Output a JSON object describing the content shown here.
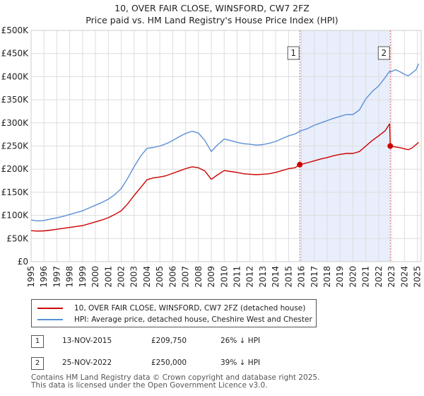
{
  "title": {
    "line1": "10, OVER FAIR CLOSE, WINSFORD, CW7 2FZ",
    "line2": "Price paid vs. HM Land Registry's House Price Index (HPI)"
  },
  "colors": {
    "property": "#cc0000",
    "hpi": "#5b8fd6",
    "shade": "#e8eefb",
    "grid": "#dddddd",
    "marker_line": "#e06666"
  },
  "chart_data": {
    "type": "line",
    "title": "10, OVER FAIR CLOSE, WINSFORD, CW7 2FZ — Price paid vs. HM Land Registry's House Price Index (HPI)",
    "xlabel": "",
    "ylabel": "",
    "xlim": [
      1995,
      2025.3
    ],
    "ylim": [
      0,
      500000
    ],
    "y_ticks": [
      {
        "value": 0,
        "label": "£0"
      },
      {
        "value": 50000,
        "label": "£50K"
      },
      {
        "value": 100000,
        "label": "£100K"
      },
      {
        "value": 150000,
        "label": "£150K"
      },
      {
        "value": 200000,
        "label": "£200K"
      },
      {
        "value": 250000,
        "label": "£250K"
      },
      {
        "value": 300000,
        "label": "£300K"
      },
      {
        "value": 350000,
        "label": "£350K"
      },
      {
        "value": 400000,
        "label": "£400K"
      },
      {
        "value": 450000,
        "label": "£450K"
      },
      {
        "value": 500000,
        "label": "£500K"
      }
    ],
    "x_ticks": [
      "1995",
      "1996",
      "1997",
      "1998",
      "1999",
      "2000",
      "2001",
      "2002",
      "2003",
      "2004",
      "2005",
      "2006",
      "2007",
      "2008",
      "2009",
      "2010",
      "2011",
      "2012",
      "2013",
      "2014",
      "2015",
      "2016",
      "2017",
      "2018",
      "2019",
      "2020",
      "2021",
      "2022",
      "2023",
      "2024",
      "2025"
    ],
    "shaded_range": [
      2015.87,
      2022.9
    ],
    "series": [
      {
        "name": "10, OVER FAIR CLOSE, WINSFORD, CW7 2FZ (detached house)",
        "color": "#cc0000",
        "points": [
          [
            1995.0,
            67000
          ],
          [
            1995.5,
            66000
          ],
          [
            1996.0,
            66500
          ],
          [
            1996.5,
            68000
          ],
          [
            1997.0,
            70000
          ],
          [
            1997.5,
            72000
          ],
          [
            1998.0,
            74000
          ],
          [
            1998.5,
            76000
          ],
          [
            1999.0,
            78000
          ],
          [
            1999.5,
            82000
          ],
          [
            2000.0,
            86000
          ],
          [
            2000.5,
            90000
          ],
          [
            2001.0,
            95000
          ],
          [
            2001.5,
            102000
          ],
          [
            2002.0,
            110000
          ],
          [
            2002.5,
            125000
          ],
          [
            2003.0,
            143000
          ],
          [
            2003.5,
            160000
          ],
          [
            2004.0,
            177000
          ],
          [
            2004.5,
            181000
          ],
          [
            2005.0,
            183000
          ],
          [
            2005.5,
            186000
          ],
          [
            2006.0,
            191000
          ],
          [
            2006.5,
            196000
          ],
          [
            2007.0,
            201000
          ],
          [
            2007.5,
            205000
          ],
          [
            2008.0,
            203000
          ],
          [
            2008.5,
            196000
          ],
          [
            2009.0,
            178000
          ],
          [
            2009.5,
            188000
          ],
          [
            2010.0,
            197000
          ],
          [
            2010.5,
            195000
          ],
          [
            2011.0,
            193000
          ],
          [
            2011.5,
            190000
          ],
          [
            2012.0,
            189000
          ],
          [
            2012.5,
            188000
          ],
          [
            2013.0,
            189000
          ],
          [
            2013.5,
            190000
          ],
          [
            2014.0,
            193000
          ],
          [
            2014.5,
            197000
          ],
          [
            2015.0,
            201000
          ],
          [
            2015.5,
            203000
          ],
          [
            2015.87,
            209750
          ],
          [
            2016.5,
            214000
          ],
          [
            2017.0,
            218000
          ],
          [
            2017.5,
            222000
          ],
          [
            2018.0,
            225000
          ],
          [
            2018.5,
            229000
          ],
          [
            2019.0,
            232000
          ],
          [
            2019.5,
            234000
          ],
          [
            2020.0,
            234000
          ],
          [
            2020.5,
            238000
          ],
          [
            2021.0,
            250000
          ],
          [
            2021.5,
            262000
          ],
          [
            2022.0,
            272000
          ],
          [
            2022.5,
            283000
          ],
          [
            2022.85,
            298000
          ],
          [
            2022.9,
            250000
          ],
          [
            2023.3,
            248000
          ],
          [
            2023.7,
            246000
          ],
          [
            2024.0,
            244000
          ],
          [
            2024.3,
            242000
          ],
          [
            2024.6,
            246000
          ],
          [
            2024.9,
            253000
          ],
          [
            2025.1,
            258000
          ]
        ]
      },
      {
        "name": "HPI: Average price, detached house, Cheshire West and Chester",
        "color": "#5b8fd6",
        "points": [
          [
            1995.0,
            90000
          ],
          [
            1995.5,
            88000
          ],
          [
            1996.0,
            89000
          ],
          [
            1996.5,
            92000
          ],
          [
            1997.0,
            95000
          ],
          [
            1997.5,
            98000
          ],
          [
            1998.0,
            102000
          ],
          [
            1998.5,
            106000
          ],
          [
            1999.0,
            110000
          ],
          [
            1999.5,
            116000
          ],
          [
            2000.0,
            122000
          ],
          [
            2000.5,
            128000
          ],
          [
            2001.0,
            135000
          ],
          [
            2001.5,
            145000
          ],
          [
            2002.0,
            158000
          ],
          [
            2002.5,
            180000
          ],
          [
            2003.0,
            205000
          ],
          [
            2003.5,
            228000
          ],
          [
            2004.0,
            245000
          ],
          [
            2004.5,
            247000
          ],
          [
            2005.0,
            250000
          ],
          [
            2005.5,
            255000
          ],
          [
            2006.0,
            262000
          ],
          [
            2006.5,
            270000
          ],
          [
            2007.0,
            277000
          ],
          [
            2007.5,
            282000
          ],
          [
            2008.0,
            278000
          ],
          [
            2008.5,
            262000
          ],
          [
            2009.0,
            238000
          ],
          [
            2009.5,
            253000
          ],
          [
            2010.0,
            265000
          ],
          [
            2010.5,
            262000
          ],
          [
            2011.0,
            258000
          ],
          [
            2011.5,
            255000
          ],
          [
            2012.0,
            254000
          ],
          [
            2012.5,
            252000
          ],
          [
            2013.0,
            253000
          ],
          [
            2013.5,
            256000
          ],
          [
            2014.0,
            260000
          ],
          [
            2014.5,
            266000
          ],
          [
            2015.0,
            272000
          ],
          [
            2015.5,
            276000
          ],
          [
            2015.87,
            282000
          ],
          [
            2016.5,
            288000
          ],
          [
            2017.0,
            295000
          ],
          [
            2017.5,
            300000
          ],
          [
            2018.0,
            305000
          ],
          [
            2018.5,
            310000
          ],
          [
            2019.0,
            314000
          ],
          [
            2019.5,
            318000
          ],
          [
            2020.0,
            318000
          ],
          [
            2020.5,
            328000
          ],
          [
            2021.0,
            352000
          ],
          [
            2021.5,
            368000
          ],
          [
            2022.0,
            380000
          ],
          [
            2022.5,
            398000
          ],
          [
            2022.85,
            412000
          ],
          [
            2022.9,
            410000
          ],
          [
            2023.3,
            415000
          ],
          [
            2023.7,
            410000
          ],
          [
            2024.0,
            405000
          ],
          [
            2024.3,
            402000
          ],
          [
            2024.6,
            408000
          ],
          [
            2024.9,
            415000
          ],
          [
            2025.1,
            428000
          ]
        ]
      }
    ],
    "annotations": [
      {
        "label": "1",
        "x": 2015.87,
        "value": 209750
      },
      {
        "label": "2",
        "x": 2022.9,
        "value": 250000
      }
    ]
  },
  "legend": {
    "property_label": "10, OVER FAIR CLOSE, WINSFORD, CW7 2FZ (detached house)",
    "hpi_label": "HPI: Average price, detached house, Cheshire West and Chester"
  },
  "transactions": [
    {
      "num": "1",
      "date": "13-NOV-2015",
      "price": "£209,750",
      "hpi": "26% ↓ HPI"
    },
    {
      "num": "2",
      "date": "25-NOV-2022",
      "price": "£250,000",
      "hpi": "39% ↓ HPI"
    }
  ],
  "footer": {
    "line1": "Contains HM Land Registry data © Crown copyright and database right 2025.",
    "line2": "This data is licensed under the Open Government Licence v3.0."
  }
}
